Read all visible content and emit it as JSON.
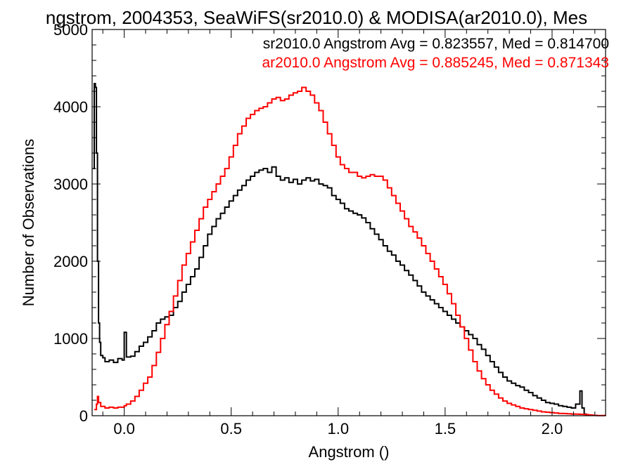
{
  "chart_data": {
    "type": "line",
    "title": "ngstrom, 2004353, SeaWiFS(sr2010.0) & MODISA(ar2010.0), Mes",
    "xlabel": "Angstrom ()",
    "ylabel": "Number of Observations",
    "xlim": [
      -0.15,
      2.25
    ],
    "ylim": [
      0,
      5000
    ],
    "x_ticks": [
      "0.0",
      "0.5",
      "1.0",
      "1.5",
      "2.0"
    ],
    "y_ticks": [
      "0",
      "1000",
      "2000",
      "3000",
      "4000",
      "5000"
    ],
    "grid": false,
    "legend_position": "top-right",
    "annotations": [
      {
        "text": "sr2010.0 Angstrom Avg = 0.823557, Med = 0.814700",
        "color": "#000000"
      },
      {
        "text": "ar2010.0 Angstrom Avg = 0.885245, Med = 0.871343",
        "color": "#ff0000"
      }
    ],
    "series": [
      {
        "color": "#000000",
        "points": [
          [
            -0.145,
            3200
          ],
          [
            -0.14,
            4300
          ],
          [
            -0.135,
            4250
          ],
          [
            -0.13,
            3400
          ],
          [
            -0.125,
            2000
          ],
          [
            -0.12,
            1200
          ],
          [
            -0.115,
            950
          ],
          [
            -0.11,
            780
          ],
          [
            -0.1,
            750
          ],
          [
            -0.09,
            700
          ],
          [
            -0.07,
            720
          ],
          [
            -0.05,
            690
          ],
          [
            -0.03,
            740
          ],
          [
            -0.01,
            720
          ],
          [
            0.0,
            1080
          ],
          [
            0.01,
            760
          ],
          [
            0.03,
            770
          ],
          [
            0.05,
            830
          ],
          [
            0.07,
            900
          ],
          [
            0.09,
            950
          ],
          [
            0.11,
            1020
          ],
          [
            0.13,
            1100
          ],
          [
            0.15,
            1200
          ],
          [
            0.17,
            1250
          ],
          [
            0.19,
            1280
          ],
          [
            0.21,
            1300
          ],
          [
            0.23,
            1400
          ],
          [
            0.25,
            1480
          ],
          [
            0.27,
            1600
          ],
          [
            0.29,
            1700
          ],
          [
            0.31,
            1800
          ],
          [
            0.33,
            1900
          ],
          [
            0.35,
            2050
          ],
          [
            0.37,
            2200
          ],
          [
            0.39,
            2350
          ],
          [
            0.41,
            2450
          ],
          [
            0.43,
            2550
          ],
          [
            0.45,
            2620
          ],
          [
            0.47,
            2700
          ],
          [
            0.49,
            2780
          ],
          [
            0.51,
            2850
          ],
          [
            0.53,
            2920
          ],
          [
            0.55,
            2980
          ],
          [
            0.57,
            3050
          ],
          [
            0.59,
            3100
          ],
          [
            0.61,
            3150
          ],
          [
            0.63,
            3180
          ],
          [
            0.65,
            3200
          ],
          [
            0.67,
            3150
          ],
          [
            0.69,
            3220
          ],
          [
            0.71,
            3100
          ],
          [
            0.73,
            3050
          ],
          [
            0.75,
            3080
          ],
          [
            0.77,
            3020
          ],
          [
            0.79,
            3060
          ],
          [
            0.81,
            3000
          ],
          [
            0.83,
            3050
          ],
          [
            0.85,
            3080
          ],
          [
            0.87,
            3040
          ],
          [
            0.89,
            3060
          ],
          [
            0.91,
            3000
          ],
          [
            0.93,
            2980
          ],
          [
            0.95,
            2950
          ],
          [
            0.97,
            2850
          ],
          [
            0.99,
            2800
          ],
          [
            1.01,
            2750
          ],
          [
            1.03,
            2680
          ],
          [
            1.05,
            2650
          ],
          [
            1.07,
            2620
          ],
          [
            1.09,
            2600
          ],
          [
            1.11,
            2560
          ],
          [
            1.13,
            2500
          ],
          [
            1.15,
            2420
          ],
          [
            1.17,
            2350
          ],
          [
            1.19,
            2280
          ],
          [
            1.21,
            2200
          ],
          [
            1.23,
            2130
          ],
          [
            1.25,
            2080
          ],
          [
            1.27,
            2000
          ],
          [
            1.29,
            1950
          ],
          [
            1.31,
            1880
          ],
          [
            1.33,
            1820
          ],
          [
            1.35,
            1750
          ],
          [
            1.37,
            1680
          ],
          [
            1.39,
            1600
          ],
          [
            1.41,
            1550
          ],
          [
            1.43,
            1500
          ],
          [
            1.45,
            1450
          ],
          [
            1.47,
            1400
          ],
          [
            1.49,
            1350
          ],
          [
            1.51,
            1300
          ],
          [
            1.53,
            1250
          ],
          [
            1.55,
            1200
          ],
          [
            1.57,
            1150
          ],
          [
            1.59,
            1100
          ],
          [
            1.61,
            1050
          ],
          [
            1.63,
            1000
          ],
          [
            1.65,
            920
          ],
          [
            1.67,
            860
          ],
          [
            1.69,
            780
          ],
          [
            1.71,
            700
          ],
          [
            1.73,
            630
          ],
          [
            1.75,
            560
          ],
          [
            1.77,
            500
          ],
          [
            1.79,
            450
          ],
          [
            1.81,
            420
          ],
          [
            1.83,
            390
          ],
          [
            1.85,
            370
          ],
          [
            1.87,
            330
          ],
          [
            1.89,
            300
          ],
          [
            1.91,
            260
          ],
          [
            1.93,
            230
          ],
          [
            1.95,
            200
          ],
          [
            1.97,
            170
          ],
          [
            1.99,
            160
          ],
          [
            2.01,
            150
          ],
          [
            2.03,
            130
          ],
          [
            2.05,
            120
          ],
          [
            2.07,
            110
          ],
          [
            2.09,
            100
          ],
          [
            2.11,
            150
          ],
          [
            2.13,
            320
          ],
          [
            2.14,
            100
          ],
          [
            2.15,
            20
          ],
          [
            2.16,
            0
          ]
        ]
      },
      {
        "color": "#ff0000",
        "points": [
          [
            -0.14,
            80
          ],
          [
            -0.13,
            150
          ],
          [
            -0.125,
            250
          ],
          [
            -0.12,
            170
          ],
          [
            -0.11,
            120
          ],
          [
            -0.09,
            100
          ],
          [
            -0.07,
            110
          ],
          [
            -0.05,
            100
          ],
          [
            -0.03,
            110
          ],
          [
            -0.01,
            110
          ],
          [
            0.0,
            130
          ],
          [
            0.01,
            150
          ],
          [
            0.03,
            190
          ],
          [
            0.05,
            250
          ],
          [
            0.07,
            330
          ],
          [
            0.09,
            420
          ],
          [
            0.11,
            500
          ],
          [
            0.13,
            650
          ],
          [
            0.15,
            820
          ],
          [
            0.17,
            1000
          ],
          [
            0.19,
            1180
          ],
          [
            0.21,
            1350
          ],
          [
            0.23,
            1550
          ],
          [
            0.25,
            1750
          ],
          [
            0.27,
            1950
          ],
          [
            0.29,
            2100
          ],
          [
            0.31,
            2250
          ],
          [
            0.33,
            2400
          ],
          [
            0.35,
            2550
          ],
          [
            0.37,
            2700
          ],
          [
            0.39,
            2800
          ],
          [
            0.41,
            2900
          ],
          [
            0.43,
            3000
          ],
          [
            0.45,
            3100
          ],
          [
            0.47,
            3200
          ],
          [
            0.49,
            3350
          ],
          [
            0.51,
            3500
          ],
          [
            0.53,
            3650
          ],
          [
            0.55,
            3750
          ],
          [
            0.57,
            3850
          ],
          [
            0.59,
            3900
          ],
          [
            0.61,
            3950
          ],
          [
            0.63,
            3980
          ],
          [
            0.65,
            4000
          ],
          [
            0.67,
            4050
          ],
          [
            0.69,
            4100
          ],
          [
            0.71,
            4120
          ],
          [
            0.73,
            4080
          ],
          [
            0.75,
            4100
          ],
          [
            0.77,
            4150
          ],
          [
            0.79,
            4180
          ],
          [
            0.81,
            4200
          ],
          [
            0.83,
            4250
          ],
          [
            0.85,
            4200
          ],
          [
            0.87,
            4150
          ],
          [
            0.89,
            4050
          ],
          [
            0.91,
            3950
          ],
          [
            0.93,
            3800
          ],
          [
            0.95,
            3650
          ],
          [
            0.97,
            3500
          ],
          [
            0.99,
            3350
          ],
          [
            1.01,
            3250
          ],
          [
            1.03,
            3200
          ],
          [
            1.05,
            3150
          ],
          [
            1.07,
            3150
          ],
          [
            1.09,
            3100
          ],
          [
            1.11,
            3080
          ],
          [
            1.13,
            3100
          ],
          [
            1.15,
            3120
          ],
          [
            1.17,
            3100
          ],
          [
            1.19,
            3100
          ],
          [
            1.21,
            3050
          ],
          [
            1.23,
            2950
          ],
          [
            1.25,
            2850
          ],
          [
            1.27,
            2750
          ],
          [
            1.29,
            2650
          ],
          [
            1.31,
            2550
          ],
          [
            1.33,
            2450
          ],
          [
            1.35,
            2380
          ],
          [
            1.37,
            2300
          ],
          [
            1.39,
            2200
          ],
          [
            1.41,
            2100
          ],
          [
            1.43,
            2000
          ],
          [
            1.45,
            1900
          ],
          [
            1.47,
            1800
          ],
          [
            1.49,
            1700
          ],
          [
            1.51,
            1580
          ],
          [
            1.53,
            1450
          ],
          [
            1.55,
            1300
          ],
          [
            1.57,
            1150
          ],
          [
            1.59,
            1000
          ],
          [
            1.61,
            850
          ],
          [
            1.63,
            700
          ],
          [
            1.65,
            580
          ],
          [
            1.67,
            480
          ],
          [
            1.69,
            400
          ],
          [
            1.71,
            330
          ],
          [
            1.73,
            280
          ],
          [
            1.75,
            230
          ],
          [
            1.77,
            190
          ],
          [
            1.79,
            160
          ],
          [
            1.81,
            140
          ],
          [
            1.83,
            120
          ],
          [
            1.85,
            100
          ],
          [
            1.87,
            90
          ],
          [
            1.89,
            80
          ],
          [
            1.91,
            70
          ],
          [
            1.93,
            60
          ],
          [
            1.95,
            50
          ],
          [
            1.97,
            45
          ],
          [
            1.99,
            40
          ],
          [
            2.01,
            35
          ],
          [
            2.03,
            30
          ],
          [
            2.05,
            28
          ],
          [
            2.07,
            25
          ],
          [
            2.09,
            22
          ],
          [
            2.11,
            20
          ],
          [
            2.13,
            18
          ],
          [
            2.15,
            15
          ],
          [
            2.17,
            10
          ],
          [
            2.19,
            5
          ],
          [
            2.21,
            2
          ],
          [
            2.25,
            0
          ]
        ]
      }
    ]
  }
}
